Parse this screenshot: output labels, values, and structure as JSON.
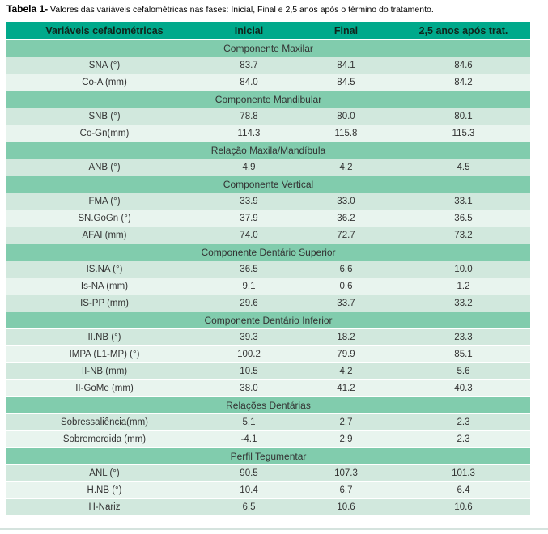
{
  "caption": {
    "prefix": "Tabela 1-",
    "text": " Valores das variáveis cefalométricas nas fases: Inicial, Final e 2,5 anos após o término do tratamento."
  },
  "table": {
    "columns": [
      "Variáveis cefalométricas",
      "Inicial",
      "Final",
      "2,5 anos após trat."
    ],
    "sections": [
      {
        "title": "Componente Maxilar",
        "rows": [
          {
            "label": "SNA (°)",
            "values": [
              "83.7",
              "84.1",
              "84.6"
            ]
          },
          {
            "label": "Co-A (mm)",
            "values": [
              "84.0",
              "84.5",
              "84.2"
            ]
          }
        ]
      },
      {
        "title": "Componente Mandibular",
        "rows": [
          {
            "label": "SNB (°)",
            "values": [
              "78.8",
              "80.0",
              "80.1"
            ]
          },
          {
            "label": "Co-Gn(mm)",
            "values": [
              "114.3",
              "115.8",
              "115.3"
            ]
          }
        ]
      },
      {
        "title": "Relação Maxila/Mandíbula",
        "rows": [
          {
            "label": "ANB (°)",
            "values": [
              "4.9",
              "4.2",
              "4.5"
            ]
          }
        ]
      },
      {
        "title": "Componente Vertical",
        "rows": [
          {
            "label": "FMA (°)",
            "values": [
              "33.9",
              "33.0",
              "33.1"
            ]
          },
          {
            "label": "SN.GoGn (°)",
            "values": [
              "37.9",
              "36.2",
              "36.5"
            ]
          },
          {
            "label": "AFAI (mm)",
            "values": [
              "74.0",
              "72.7",
              "73.2"
            ]
          }
        ]
      },
      {
        "title": "Componente Dentário Superior",
        "rows": [
          {
            "label": "IS.NA (°)",
            "values": [
              "36.5",
              "6.6",
              "10.0"
            ]
          },
          {
            "label": "Is-NA (mm)",
            "values": [
              "9.1",
              "0.6",
              "1.2"
            ]
          },
          {
            "label": "IS-PP (mm)",
            "values": [
              "29.6",
              "33.7",
              "33.2"
            ]
          }
        ]
      },
      {
        "title": "Componente Dentário Inferior",
        "rows": [
          {
            "label": "II.NB (°)",
            "values": [
              "39.3",
              "18.2",
              "23.3"
            ]
          },
          {
            "label": "IMPA (L1-MP) (°)",
            "values": [
              "100.2",
              "79.9",
              "85.1"
            ]
          },
          {
            "label": "II-NB (mm)",
            "values": [
              "10.5",
              "4.2",
              "5.6"
            ]
          },
          {
            "label": "II-GoMe (mm)",
            "values": [
              "38.0",
              "41.2",
              "40.3"
            ]
          }
        ]
      },
      {
        "title": "Relações Dentárias",
        "rows": [
          {
            "label": "Sobressaliência(mm)",
            "values": [
              "5.1",
              "2.7",
              "2.3"
            ]
          },
          {
            "label": "Sobremordida (mm)",
            "values": [
              "-4.1",
              "2.9",
              "2.3"
            ]
          }
        ]
      },
      {
        "title": "Perfil Tegumentar",
        "rows": [
          {
            "label": "ANL (°)",
            "values": [
              "90.5",
              "107.3",
              "101.3"
            ]
          },
          {
            "label": "H.NB (°)",
            "values": [
              "10.4",
              "6.7",
              "6.4"
            ]
          },
          {
            "label": "H-Nariz",
            "values": [
              "6.5",
              "10.6",
              "10.6"
            ]
          }
        ]
      }
    ]
  },
  "colors": {
    "header_bg": "#00a98b",
    "header_text": "#10251c",
    "section_bg": "#81ccad",
    "row_dark": "#d1e8dd",
    "row_light": "#e8f4ee",
    "body_text": "#333333",
    "bottom_rule": "#d5e3de"
  }
}
